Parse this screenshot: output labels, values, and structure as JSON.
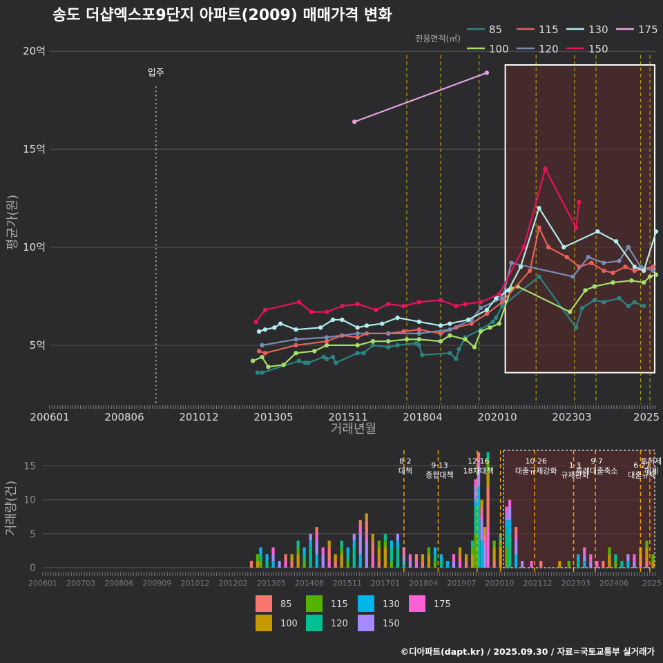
{
  "title": "송도 더샵엑스포9단지 아파트(2009) 매매가격 변화",
  "footer": "©디아파트(dapt.kr) / 2025.09.30 / 자료=국토교통부 실거래가",
  "colors": {
    "background": "#2b2b2d",
    "grid": "#555555",
    "policy_line": "#e6e600",
    "highlight_fill": "#5a2a2a",
    "s85": "#2a8580",
    "s100": "#a6e06b",
    "s115": "#e8605a",
    "s120": "#7b8bb5",
    "s130": "#b3ecec",
    "s150": "#e8125c",
    "s175": "#e6a3e0",
    "b85": "#f8766d",
    "b100": "#c49a00",
    "b115": "#53b400",
    "b120": "#00c094",
    "b130": "#00b6eb",
    "b150": "#a58aff",
    "b175": "#fb61d7"
  },
  "chart_data": [
    {
      "type": "line",
      "title": "송도 더샵엑스포9단지 아파트(2009) 매매가격 변화",
      "xlabel": "거래년월",
      "ylabel": "평균가(원)",
      "legend_title": "전용면적(㎡)",
      "legend_position": "top-right",
      "x_tick_labels": [
        "200601",
        "200806",
        "201012",
        "201305",
        "201511",
        "201804",
        "202010",
        "202303",
        "2025"
      ],
      "y_tick_labels": [
        "5억",
        "10억",
        "15억",
        "20억"
      ],
      "y_ticks": [
        5,
        10,
        15,
        20
      ],
      "ylim": [
        2,
        20.5
      ],
      "xlim": [
        2006.0,
        2025.7
      ],
      "grid": true,
      "annotations": [
        {
          "text": "입주",
          "x": 2009.45
        }
      ],
      "policy_lines": [
        2017.6,
        2018.7,
        2019.95,
        2021.8,
        2023.05,
        2023.75,
        2025.2,
        2025.5
      ],
      "highlight_range": [
        2020.8,
        2025.7
      ],
      "series": [
        {
          "name": "85",
          "values": [
            [
              2012.75,
              3.6
            ],
            [
              2012.9,
              3.6
            ],
            [
              2014.1,
              4.2
            ],
            [
              2014.3,
              4.1
            ],
            [
              2014.4,
              4.1
            ],
            [
              2014.9,
              4.4
            ],
            [
              2015.0,
              4.3
            ],
            [
              2015.2,
              4.4
            ],
            [
              2015.3,
              4.1
            ],
            [
              2016.0,
              4.6
            ],
            [
              2016.2,
              4.6
            ],
            [
              2016.5,
              5.0
            ],
            [
              2017.0,
              4.9
            ],
            [
              2017.3,
              5.0
            ],
            [
              2017.9,
              5.1
            ],
            [
              2018.0,
              5.0
            ],
            [
              2018.1,
              4.5
            ],
            [
              2019.0,
              4.6
            ],
            [
              2019.2,
              4.3
            ],
            [
              2019.3,
              4.8
            ],
            [
              2019.5,
              5.4
            ],
            [
              2020.0,
              5.8
            ],
            [
              2020.4,
              6.2
            ],
            [
              2020.5,
              6.4
            ],
            [
              2020.7,
              7.0
            ],
            [
              2021.9,
              8.5
            ],
            [
              2023.1,
              5.9
            ],
            [
              2023.3,
              6.9
            ],
            [
              2023.7,
              7.3
            ],
            [
              2024.0,
              7.2
            ],
            [
              2024.5,
              7.4
            ],
            [
              2024.8,
              7.0
            ],
            [
              2025.0,
              7.2
            ],
            [
              2025.3,
              7.0
            ]
          ]
        },
        {
          "name": "100",
          "values": [
            [
              2012.6,
              4.2
            ],
            [
              2012.9,
              4.4
            ],
            [
              2013.1,
              3.9
            ],
            [
              2013.6,
              4.0
            ],
            [
              2014.0,
              4.6
            ],
            [
              2014.6,
              4.7
            ],
            [
              2015.0,
              5.0
            ],
            [
              2016.0,
              5.0
            ],
            [
              2016.5,
              5.2
            ],
            [
              2017.0,
              5.2
            ],
            [
              2017.6,
              5.3
            ],
            [
              2018.0,
              5.3
            ],
            [
              2018.7,
              5.2
            ],
            [
              2019.0,
              5.5
            ],
            [
              2019.5,
              5.3
            ],
            [
              2019.8,
              4.9
            ],
            [
              2020.0,
              5.7
            ],
            [
              2020.3,
              5.9
            ],
            [
              2020.6,
              6.1
            ],
            [
              2021.0,
              7.9
            ],
            [
              2021.2,
              8.0
            ],
            [
              2022.9,
              6.7
            ],
            [
              2023.4,
              7.8
            ],
            [
              2023.7,
              8.0
            ],
            [
              2024.3,
              8.2
            ],
            [
              2024.9,
              8.3
            ],
            [
              2025.3,
              8.2
            ],
            [
              2025.5,
              8.5
            ],
            [
              2025.7,
              8.6
            ]
          ]
        },
        {
          "name": "115",
          "values": [
            [
              2012.8,
              4.7
            ],
            [
              2013.0,
              4.6
            ],
            [
              2014.0,
              5.0
            ],
            [
              2015.0,
              5.2
            ],
            [
              2015.5,
              5.5
            ],
            [
              2016.0,
              5.4
            ],
            [
              2016.3,
              5.6
            ],
            [
              2017.0,
              5.6
            ],
            [
              2017.5,
              5.7
            ],
            [
              2018.0,
              5.8
            ],
            [
              2018.7,
              5.6
            ],
            [
              2019.2,
              5.9
            ],
            [
              2019.7,
              6.1
            ],
            [
              2020.2,
              6.6
            ],
            [
              2020.7,
              7.2
            ],
            [
              2021.6,
              8.8
            ],
            [
              2021.9,
              11.0
            ],
            [
              2022.2,
              10.0
            ],
            [
              2022.8,
              9.5
            ],
            [
              2023.2,
              9.0
            ],
            [
              2023.6,
              9.2
            ],
            [
              2024.0,
              8.8
            ],
            [
              2024.3,
              8.7
            ],
            [
              2024.7,
              9.0
            ],
            [
              2025.0,
              8.8
            ],
            [
              2025.3,
              8.9
            ],
            [
              2025.6,
              9.0
            ]
          ]
        },
        {
          "name": "120",
          "values": [
            [
              2012.9,
              5.0
            ],
            [
              2014.0,
              5.3
            ],
            [
              2015.0,
              5.4
            ],
            [
              2016.0,
              5.6
            ],
            [
              2017.0,
              5.6
            ],
            [
              2018.0,
              5.6
            ],
            [
              2019.0,
              5.8
            ],
            [
              2019.7,
              6.3
            ],
            [
              2020.0,
              6.9
            ],
            [
              2020.7,
              7.4
            ],
            [
              2021.0,
              9.2
            ],
            [
              2023.0,
              8.5
            ],
            [
              2023.5,
              9.5
            ],
            [
              2024.0,
              9.2
            ],
            [
              2024.5,
              9.3
            ],
            [
              2024.8,
              10.0
            ],
            [
              2025.2,
              9.0
            ],
            [
              2025.6,
              8.8
            ]
          ]
        },
        {
          "name": "130",
          "values": [
            [
              2012.8,
              5.7
            ],
            [
              2013.0,
              5.8
            ],
            [
              2013.3,
              5.9
            ],
            [
              2013.5,
              6.1
            ],
            [
              2014.0,
              5.8
            ],
            [
              2014.8,
              5.9
            ],
            [
              2015.2,
              6.3
            ],
            [
              2015.5,
              6.3
            ],
            [
              2016.0,
              5.9
            ],
            [
              2016.3,
              6.0
            ],
            [
              2016.8,
              6.1
            ],
            [
              2017.3,
              6.4
            ],
            [
              2018.0,
              6.2
            ],
            [
              2018.7,
              6.0
            ],
            [
              2019.0,
              6.1
            ],
            [
              2019.6,
              6.3
            ],
            [
              2020.2,
              6.8
            ],
            [
              2020.5,
              7.4
            ],
            [
              2020.9,
              7.8
            ],
            [
              2021.3,
              9.0
            ],
            [
              2021.9,
              12.0
            ],
            [
              2022.7,
              10.0
            ],
            [
              2023.8,
              10.8
            ],
            [
              2024.4,
              10.3
            ],
            [
              2025.0,
              9.0
            ],
            [
              2025.3,
              8.8
            ],
            [
              2025.7,
              10.8
            ]
          ]
        },
        {
          "name": "150",
          "values": [
            [
              2012.7,
              6.2
            ],
            [
              2013.0,
              6.8
            ],
            [
              2014.1,
              7.2
            ],
            [
              2014.5,
              6.7
            ],
            [
              2015.0,
              6.7
            ],
            [
              2015.5,
              7.0
            ],
            [
              2016.0,
              7.1
            ],
            [
              2016.6,
              6.8
            ],
            [
              2017.0,
              7.1
            ],
            [
              2017.5,
              7.0
            ],
            [
              2018.0,
              7.2
            ],
            [
              2018.7,
              7.3
            ],
            [
              2019.2,
              7.0
            ],
            [
              2019.5,
              7.1
            ],
            [
              2020.0,
              7.2
            ],
            [
              2020.6,
              7.6
            ],
            [
              2021.4,
              10.0
            ],
            [
              2022.1,
              14.0
            ],
            [
              2023.1,
              11.0
            ],
            [
              2023.2,
              12.3
            ]
          ]
        },
        {
          "name": "175",
          "values": [
            [
              2015.9,
              16.4
            ],
            [
              2020.2,
              18.9
            ]
          ]
        }
      ]
    },
    {
      "type": "bar",
      "ylabel": "거래량(건)",
      "legend_position": "bottom",
      "x_tick_labels": [
        "200601",
        "200703",
        "200806",
        "200909",
        "201012",
        "201202",
        "201305",
        "201408",
        "201511",
        "201701",
        "201804",
        "201907",
        "202010",
        "202112",
        "202303",
        "202406",
        "2025"
      ],
      "y_tick_labels": [
        "0",
        "5",
        "10",
        "15"
      ],
      "y_ticks": [
        0,
        5,
        10,
        15
      ],
      "ylim": [
        0,
        17.5
      ],
      "xlim": [
        2006.0,
        2025.7
      ],
      "highlight_range": [
        2020.8,
        2025.7
      ],
      "policy_lines": [
        {
          "x": 2017.6,
          "label": "8·2 대책"
        },
        {
          "x": 2018.7,
          "label": "9·13 종합대책"
        },
        {
          "x": 2019.95,
          "label": "12·16 18차대책"
        },
        {
          "x": 2020.7,
          "label": ""
        },
        {
          "x": 2021.8,
          "label": "10·26 대출규제강화"
        },
        {
          "x": 2023.05,
          "label": "1·3 규제완화"
        },
        {
          "x": 2023.75,
          "label": "9·7 특례대출축소"
        },
        {
          "x": 2025.2,
          "label": "6·27 대출규제"
        },
        {
          "x": 2025.5,
          "label": "토허제 해제"
        }
      ],
      "categories": [
        "85",
        "100",
        "115",
        "120",
        "130",
        "150",
        "175"
      ],
      "series_totals": [
        {
          "x": 2012.7,
          "v": 1
        },
        {
          "x": 2012.9,
          "v": 2
        },
        {
          "x": 2013.0,
          "v": 3
        },
        {
          "x": 2013.2,
          "v": 2
        },
        {
          "x": 2013.4,
          "v": 3
        },
        {
          "x": 2013.6,
          "v": 1
        },
        {
          "x": 2013.8,
          "v": 2
        },
        {
          "x": 2014.0,
          "v": 2
        },
        {
          "x": 2014.2,
          "v": 4
        },
        {
          "x": 2014.4,
          "v": 3
        },
        {
          "x": 2014.6,
          "v": 5
        },
        {
          "x": 2014.8,
          "v": 6
        },
        {
          "x": 2015.0,
          "v": 3
        },
        {
          "x": 2015.2,
          "v": 4
        },
        {
          "x": 2015.4,
          "v": 2
        },
        {
          "x": 2015.6,
          "v": 4
        },
        {
          "x": 2015.8,
          "v": 3
        },
        {
          "x": 2016.0,
          "v": 5
        },
        {
          "x": 2016.2,
          "v": 7
        },
        {
          "x": 2016.4,
          "v": 8
        },
        {
          "x": 2016.6,
          "v": 5
        },
        {
          "x": 2016.8,
          "v": 4
        },
        {
          "x": 2017.0,
          "v": 5
        },
        {
          "x": 2017.2,
          "v": 4
        },
        {
          "x": 2017.4,
          "v": 5
        },
        {
          "x": 2017.6,
          "v": 3
        },
        {
          "x": 2017.8,
          "v": 2
        },
        {
          "x": 2018.0,
          "v": 2
        },
        {
          "x": 2018.2,
          "v": 2
        },
        {
          "x": 2018.4,
          "v": 3
        },
        {
          "x": 2018.6,
          "v": 3
        },
        {
          "x": 2018.8,
          "v": 2
        },
        {
          "x": 2019.0,
          "v": 1
        },
        {
          "x": 2019.2,
          "v": 2
        },
        {
          "x": 2019.4,
          "v": 3
        },
        {
          "x": 2019.6,
          "v": 2
        },
        {
          "x": 2019.8,
          "v": 4
        },
        {
          "x": 2019.9,
          "v": 13
        },
        {
          "x": 2020.0,
          "v": 17
        },
        {
          "x": 2020.1,
          "v": 10
        },
        {
          "x": 2020.2,
          "v": 6
        },
        {
          "x": 2020.3,
          "v": 17
        },
        {
          "x": 2020.5,
          "v": 4
        },
        {
          "x": 2020.7,
          "v": 5
        },
        {
          "x": 2020.9,
          "v": 9
        },
        {
          "x": 2021.0,
          "v": 10
        },
        {
          "x": 2021.2,
          "v": 6
        },
        {
          "x": 2021.4,
          "v": 1
        },
        {
          "x": 2021.7,
          "v": 1
        },
        {
          "x": 2022.0,
          "v": 1
        },
        {
          "x": 2022.6,
          "v": 1
        },
        {
          "x": 2022.9,
          "v": 1
        },
        {
          "x": 2023.2,
          "v": 2
        },
        {
          "x": 2023.4,
          "v": 3
        },
        {
          "x": 2023.6,
          "v": 2
        },
        {
          "x": 2023.8,
          "v": 1
        },
        {
          "x": 2024.0,
          "v": 1
        },
        {
          "x": 2024.2,
          "v": 3
        },
        {
          "x": 2024.4,
          "v": 2
        },
        {
          "x": 2024.6,
          "v": 1
        },
        {
          "x": 2024.8,
          "v": 2
        },
        {
          "x": 2025.0,
          "v": 2
        },
        {
          "x": 2025.2,
          "v": 3
        },
        {
          "x": 2025.4,
          "v": 4
        },
        {
          "x": 2025.6,
          "v": 2
        }
      ]
    }
  ]
}
